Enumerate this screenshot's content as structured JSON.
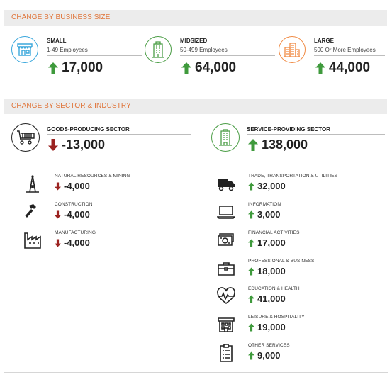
{
  "colors": {
    "up": "#3f9a3c",
    "down": "#9b2220",
    "section_heading": "#e0763c",
    "small_icon": "#3aa7dc",
    "mid_icon": "#4c9e47",
    "large_icon": "#f08b45"
  },
  "business_size": {
    "heading": "CHANGE BY BUSINESS SIZE",
    "cards": [
      {
        "title": "SMALL",
        "subtitle": "1-49 Employees",
        "value": "17,000",
        "direction": "up",
        "icon": "storefront-icon"
      },
      {
        "title": "MIDSIZED",
        "subtitle": "50-499 Employees",
        "value": "64,000",
        "direction": "up",
        "icon": "office-tower-icon"
      },
      {
        "title": "LARGE",
        "subtitle": "500 Or More Employees",
        "value": "44,000",
        "direction": "up",
        "icon": "city-buildings-icon"
      }
    ]
  },
  "sector": {
    "heading": "CHANGE BY SECTOR & INDUSTRY",
    "goods": {
      "title": "GOODS-PRODUCING SECTOR",
      "value": "-13,000",
      "direction": "down",
      "icon": "factory-cart-icon",
      "industries": [
        {
          "label": "NATURAL RESOURCES & MINING",
          "value": "-4,000",
          "direction": "down",
          "icon": "oil-derrick-icon"
        },
        {
          "label": "CONSTRUCTION",
          "value": "-4,000",
          "direction": "down",
          "icon": "hammer-icon"
        },
        {
          "label": "MANUFACTURING",
          "value": "-4,000",
          "direction": "down",
          "icon": "factory-icon"
        }
      ]
    },
    "service": {
      "title": "SERVICE-PROVIDING SECTOR",
      "value": "138,000",
      "direction": "up",
      "icon": "office-building-icon",
      "industries": [
        {
          "label": "TRADE, TRANSPORTATION & UTILITIES",
          "value": "32,000",
          "direction": "up",
          "icon": "truck-icon"
        },
        {
          "label": "INFORMATION",
          "value": "3,000",
          "direction": "up",
          "icon": "laptop-icon"
        },
        {
          "label": "FINANCIAL ACTIVITIES",
          "value": "17,000",
          "direction": "up",
          "icon": "money-icon"
        },
        {
          "label": "PROFESSIONAL & BUSINESS",
          "value": "18,000",
          "direction": "up",
          "icon": "briefcase-icon"
        },
        {
          "label": "EDUCATION & HEALTH",
          "value": "41,000",
          "direction": "up",
          "icon": "heart-pulse-icon"
        },
        {
          "label": "LEISURE & HOSPITALITY",
          "value": "19,000",
          "direction": "up",
          "icon": "hotel-icon"
        },
        {
          "label": "OTHER SERVICES",
          "value": "9,000",
          "direction": "up",
          "icon": "clipboard-icon"
        }
      ]
    }
  }
}
